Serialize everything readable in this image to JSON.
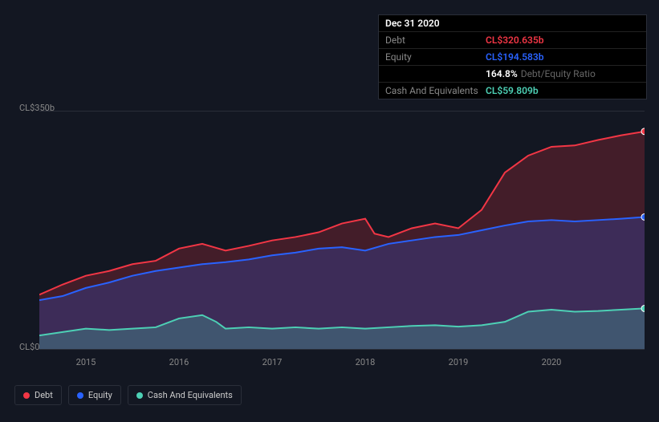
{
  "tooltip": {
    "date": "Dec 31 2020",
    "rows": [
      {
        "label": "Debt",
        "value": "CL$320.635b",
        "color": "#f23645"
      },
      {
        "label": "Equity",
        "value": "CL$194.583b",
        "color": "#2962ff"
      },
      {
        "label": "",
        "value": "164.8%",
        "suffix": "Debt/Equity Ratio",
        "color": "#ffffff"
      },
      {
        "label": "Cash And Equivalents",
        "value": "CL$59.809b",
        "color": "#4dd0b5"
      }
    ]
  },
  "chart": {
    "type": "area",
    "background_color": "#131722",
    "grid_color": "#2a2e39",
    "ylim": [
      0,
      350
    ],
    "y_ticks": [
      {
        "v": 350,
        "label": "CL$350b"
      },
      {
        "v": 0,
        "label": "CL$0"
      }
    ],
    "x_labels": [
      "2015",
      "2016",
      "2017",
      "2018",
      "2019",
      "2020"
    ],
    "x_start": 2014.5,
    "x_end": 2021,
    "series": [
      {
        "name": "Debt",
        "color": "#f23645",
        "fill": "rgba(242,54,69,0.22)",
        "data": [
          [
            2014.5,
            80
          ],
          [
            2014.75,
            95
          ],
          [
            2015,
            108
          ],
          [
            2015.25,
            115
          ],
          [
            2015.5,
            125
          ],
          [
            2015.75,
            130
          ],
          [
            2016,
            148
          ],
          [
            2016.25,
            155
          ],
          [
            2016.5,
            145
          ],
          [
            2016.75,
            152
          ],
          [
            2017,
            160
          ],
          [
            2017.25,
            165
          ],
          [
            2017.5,
            172
          ],
          [
            2017.75,
            185
          ],
          [
            2018,
            192
          ],
          [
            2018.1,
            170
          ],
          [
            2018.25,
            165
          ],
          [
            2018.5,
            178
          ],
          [
            2018.75,
            185
          ],
          [
            2019,
            178
          ],
          [
            2019.25,
            205
          ],
          [
            2019.5,
            260
          ],
          [
            2019.75,
            285
          ],
          [
            2020,
            298
          ],
          [
            2020.25,
            300
          ],
          [
            2020.5,
            308
          ],
          [
            2020.75,
            315
          ],
          [
            2021,
            320.635
          ]
        ]
      },
      {
        "name": "Equity",
        "color": "#2962ff",
        "fill": "rgba(41,98,255,0.22)",
        "data": [
          [
            2014.5,
            72
          ],
          [
            2014.75,
            78
          ],
          [
            2015,
            90
          ],
          [
            2015.25,
            98
          ],
          [
            2015.5,
            108
          ],
          [
            2015.75,
            115
          ],
          [
            2016,
            120
          ],
          [
            2016.25,
            125
          ],
          [
            2016.5,
            128
          ],
          [
            2016.75,
            132
          ],
          [
            2017,
            138
          ],
          [
            2017.25,
            142
          ],
          [
            2017.5,
            148
          ],
          [
            2017.75,
            150
          ],
          [
            2018,
            145
          ],
          [
            2018.25,
            155
          ],
          [
            2018.5,
            160
          ],
          [
            2018.75,
            165
          ],
          [
            2019,
            168
          ],
          [
            2019.25,
            175
          ],
          [
            2019.5,
            182
          ],
          [
            2019.75,
            188
          ],
          [
            2020,
            190
          ],
          [
            2020.25,
            188
          ],
          [
            2020.5,
            190
          ],
          [
            2020.75,
            192
          ],
          [
            2021,
            194.583
          ]
        ]
      },
      {
        "name": "Cash And Equivalents",
        "color": "#4dd0b5",
        "fill": "rgba(77,208,181,0.25)",
        "data": [
          [
            2014.5,
            20
          ],
          [
            2014.75,
            25
          ],
          [
            2015,
            30
          ],
          [
            2015.25,
            28
          ],
          [
            2015.5,
            30
          ],
          [
            2015.75,
            32
          ],
          [
            2016,
            45
          ],
          [
            2016.25,
            50
          ],
          [
            2016.4,
            40
          ],
          [
            2016.5,
            30
          ],
          [
            2016.75,
            32
          ],
          [
            2017,
            30
          ],
          [
            2017.25,
            32
          ],
          [
            2017.5,
            30
          ],
          [
            2017.75,
            32
          ],
          [
            2018,
            30
          ],
          [
            2018.25,
            32
          ],
          [
            2018.5,
            34
          ],
          [
            2018.75,
            35
          ],
          [
            2019,
            33
          ],
          [
            2019.25,
            35
          ],
          [
            2019.5,
            40
          ],
          [
            2019.75,
            55
          ],
          [
            2020,
            58
          ],
          [
            2020.25,
            55
          ],
          [
            2020.5,
            56
          ],
          [
            2020.75,
            58
          ],
          [
            2021,
            59.809
          ]
        ]
      }
    ],
    "legend": [
      {
        "label": "Debt",
        "color": "#f23645"
      },
      {
        "label": "Equity",
        "color": "#2962ff"
      },
      {
        "label": "Cash And Equivalents",
        "color": "#4dd0b5"
      }
    ]
  }
}
